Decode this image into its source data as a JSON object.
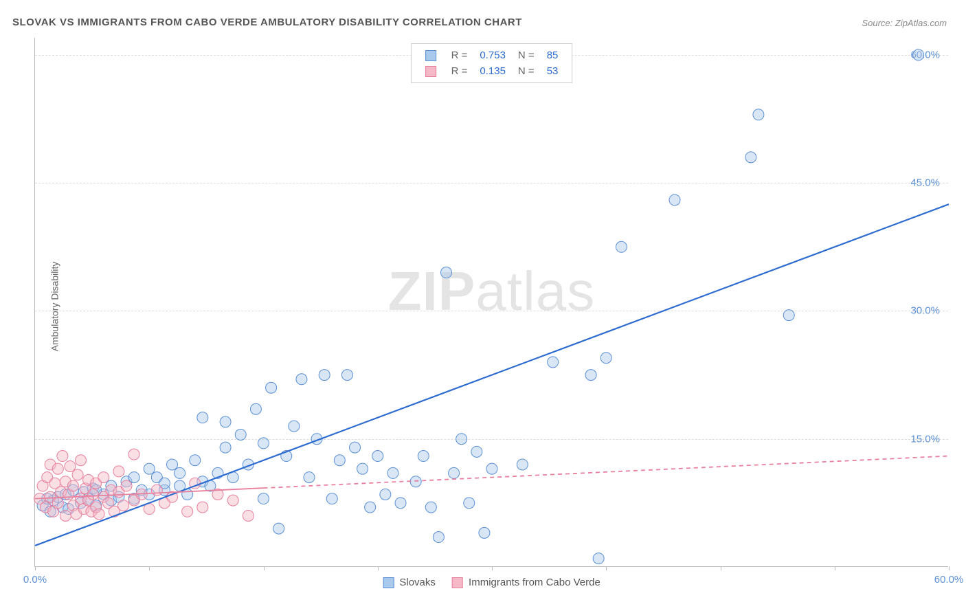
{
  "title": "SLOVAK VS IMMIGRANTS FROM CABO VERDE AMBULATORY DISABILITY CORRELATION CHART",
  "source": "Source: ZipAtlas.com",
  "ylabel": "Ambulatory Disability",
  "watermark_bold": "ZIP",
  "watermark_light": "atlas",
  "chart": {
    "type": "scatter",
    "xlim": [
      0,
      60
    ],
    "ylim": [
      0,
      62
    ],
    "ytick_step": 15,
    "ytick_labels": [
      "15.0%",
      "30.0%",
      "45.0%",
      "60.0%"
    ],
    "ytick_values": [
      15,
      30,
      45,
      60
    ],
    "xtick_values": [
      0,
      7.5,
      15,
      22.5,
      30,
      37.5,
      45,
      52.5,
      60
    ],
    "xtick_labels_shown": {
      "0": "0.0%",
      "60": "60.0%"
    },
    "background_color": "#ffffff",
    "grid_color": "#dddddd",
    "axis_color": "#bbbbbb",
    "tick_label_color": "#5b8fd6",
    "marker_radius": 8,
    "marker_opacity": 0.45,
    "series": [
      {
        "name": "Slovaks",
        "label": "Slovaks",
        "color_fill": "#a8c8ec",
        "color_stroke": "#5b8fd6",
        "R": "0.753",
        "N": "85",
        "trend": {
          "x1": 0,
          "y1": 2.5,
          "x2": 60,
          "y2": 42.5,
          "stroke": "#2d6bd1",
          "width": 2.2,
          "dash": "none"
        },
        "trend_solid_until_x": 60,
        "points": [
          [
            0.5,
            7.2
          ],
          [
            0.8,
            8.0
          ],
          [
            1.0,
            6.5
          ],
          [
            1.2,
            7.8
          ],
          [
            1.5,
            8.2
          ],
          [
            1.8,
            7.0
          ],
          [
            2.0,
            8.5
          ],
          [
            2.2,
            6.8
          ],
          [
            2.5,
            9.0
          ],
          [
            3.0,
            7.5
          ],
          [
            3.2,
            8.8
          ],
          [
            3.5,
            8.0
          ],
          [
            3.8,
            9.2
          ],
          [
            4.0,
            7.2
          ],
          [
            4.5,
            8.5
          ],
          [
            5.0,
            9.5
          ],
          [
            5.0,
            7.8
          ],
          [
            5.5,
            8.2
          ],
          [
            6.0,
            10.0
          ],
          [
            6.5,
            8.0
          ],
          [
            7.0,
            9.0
          ],
          [
            7.5,
            11.5
          ],
          [
            7.5,
            8.5
          ],
          [
            8.0,
            10.5
          ],
          [
            8.5,
            9.0
          ],
          [
            9.0,
            12.0
          ],
          [
            9.5,
            9.5
          ],
          [
            9.5,
            11.0
          ],
          [
            10.0,
            8.5
          ],
          [
            10.5,
            12.5
          ],
          [
            11.0,
            10.0
          ],
          [
            11.0,
            17.5
          ],
          [
            11.5,
            9.5
          ],
          [
            12.0,
            11.0
          ],
          [
            12.5,
            14.0
          ],
          [
            12.5,
            17.0
          ],
          [
            13.0,
            10.5
          ],
          [
            13.5,
            15.5
          ],
          [
            14.0,
            12.0
          ],
          [
            14.5,
            18.5
          ],
          [
            15.0,
            8.0
          ],
          [
            15.0,
            14.5
          ],
          [
            15.5,
            21.0
          ],
          [
            16.0,
            4.5
          ],
          [
            16.5,
            13.0
          ],
          [
            17.0,
            16.5
          ],
          [
            17.5,
            22.0
          ],
          [
            18.0,
            10.5
          ],
          [
            18.5,
            15.0
          ],
          [
            19.0,
            22.5
          ],
          [
            19.5,
            8.0
          ],
          [
            20.0,
            12.5
          ],
          [
            20.5,
            22.5
          ],
          [
            21.0,
            14.0
          ],
          [
            21.5,
            11.5
          ],
          [
            22.0,
            7.0
          ],
          [
            22.5,
            13.0
          ],
          [
            23.0,
            8.5
          ],
          [
            23.5,
            11.0
          ],
          [
            24.0,
            7.5
          ],
          [
            25.0,
            10.0
          ],
          [
            25.5,
            13.0
          ],
          [
            26.0,
            7.0
          ],
          [
            26.5,
            3.5
          ],
          [
            27.0,
            34.5
          ],
          [
            27.5,
            11.0
          ],
          [
            28.0,
            15.0
          ],
          [
            28.5,
            7.5
          ],
          [
            29.0,
            13.5
          ],
          [
            29.5,
            4.0
          ],
          [
            30.0,
            11.5
          ],
          [
            32.0,
            12.0
          ],
          [
            34.0,
            24.0
          ],
          [
            36.5,
            22.5
          ],
          [
            37.0,
            1.0
          ],
          [
            37.5,
            24.5
          ],
          [
            38.5,
            37.5
          ],
          [
            42.0,
            43.0
          ],
          [
            47.0,
            48.0
          ],
          [
            47.5,
            53.0
          ],
          [
            49.5,
            29.5
          ],
          [
            58.0,
            60.0
          ],
          [
            4.0,
            9.0
          ],
          [
            6.5,
            10.5
          ],
          [
            8.5,
            9.8
          ]
        ]
      },
      {
        "name": "Immigrants from Cabo Verde",
        "label": "Immigrants from Cabo Verde",
        "color_fill": "#f4b8c6",
        "color_stroke": "#e87f9c",
        "R": "0.135",
        "N": "53",
        "trend": {
          "x1": 0,
          "y1": 8.0,
          "x2": 60,
          "y2": 13.0,
          "stroke": "#e87f9c",
          "width": 1.8,
          "dash": "6,5"
        },
        "trend_solid_until_x": 15,
        "points": [
          [
            0.3,
            8.0
          ],
          [
            0.5,
            9.5
          ],
          [
            0.7,
            7.0
          ],
          [
            0.8,
            10.5
          ],
          [
            1.0,
            8.2
          ],
          [
            1.0,
            12.0
          ],
          [
            1.2,
            6.5
          ],
          [
            1.3,
            9.8
          ],
          [
            1.5,
            11.5
          ],
          [
            1.5,
            7.5
          ],
          [
            1.7,
            8.8
          ],
          [
            1.8,
            13.0
          ],
          [
            2.0,
            6.0
          ],
          [
            2.0,
            10.0
          ],
          [
            2.2,
            8.5
          ],
          [
            2.3,
            11.8
          ],
          [
            2.5,
            7.2
          ],
          [
            2.5,
            9.5
          ],
          [
            2.7,
            6.2
          ],
          [
            2.8,
            10.8
          ],
          [
            3.0,
            8.0
          ],
          [
            3.0,
            12.5
          ],
          [
            3.2,
            6.8
          ],
          [
            3.3,
            9.2
          ],
          [
            3.5,
            7.8
          ],
          [
            3.5,
            10.2
          ],
          [
            3.7,
            6.5
          ],
          [
            3.8,
            8.5
          ],
          [
            4.0,
            7.0
          ],
          [
            4.0,
            9.8
          ],
          [
            4.2,
            6.2
          ],
          [
            4.5,
            8.2
          ],
          [
            4.5,
            10.5
          ],
          [
            4.8,
            7.5
          ],
          [
            5.0,
            9.0
          ],
          [
            5.2,
            6.5
          ],
          [
            5.5,
            8.8
          ],
          [
            5.5,
            11.2
          ],
          [
            5.8,
            7.2
          ],
          [
            6.0,
            9.5
          ],
          [
            6.5,
            7.8
          ],
          [
            6.5,
            13.2
          ],
          [
            7.0,
            8.5
          ],
          [
            7.5,
            6.8
          ],
          [
            8.0,
            9.0
          ],
          [
            8.5,
            7.5
          ],
          [
            9.0,
            8.2
          ],
          [
            10.0,
            6.5
          ],
          [
            10.5,
            9.8
          ],
          [
            11.0,
            7.0
          ],
          [
            12.0,
            8.5
          ],
          [
            13.0,
            7.8
          ],
          [
            14.0,
            6.0
          ]
        ]
      }
    ]
  },
  "legend_top": {
    "R_label": "R =",
    "N_label": "N =",
    "value_color": "#2d6bd1",
    "label_color": "#666666"
  },
  "legend_bottom": {
    "items": [
      "Slovaks",
      "Immigrants from Cabo Verde"
    ]
  }
}
